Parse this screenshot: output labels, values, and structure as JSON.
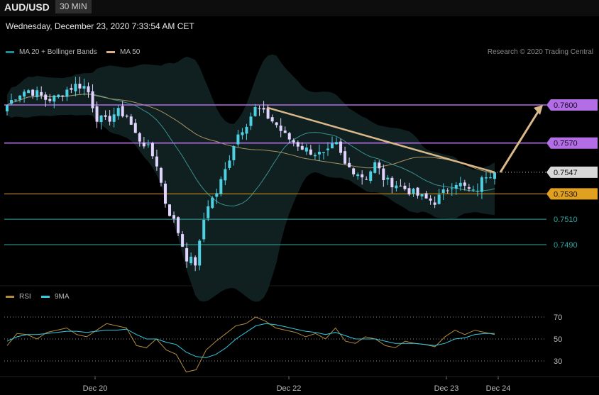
{
  "header": {
    "symbol": "AUD/USD",
    "timeframe": "30 MIN"
  },
  "datetime": "Wednesday, December 23, 2020 7:33:54 AM CET",
  "legend": {
    "ma20_label": "MA 20 + Bollinger Bands",
    "ma50_label": "MA 50",
    "credit": "Research © 2020 Trading Central"
  },
  "rsi_legend": {
    "rsi_label": "RSI",
    "ma9_label": "9MA"
  },
  "colors": {
    "bull": "#4dd0e1",
    "bear": "#e1d4ff",
    "bollinger": "#1e3b3c",
    "ma20": "#3a8f8c",
    "ma50": "#a89060",
    "resistance": "#b36ee6",
    "support_orange": "#e0a020",
    "support_cyan": "#2fa7a0",
    "trendline": "#d9b88a",
    "rsi": "#b08a3e",
    "rsi_ma": "#33c9e0"
  },
  "chart_data": {
    "type": "candlestick",
    "price_ylim": [
      0.7443,
      0.7654
    ],
    "x_labels": [
      "Dec 20",
      "Dec 22",
      "Dec 23",
      "Dec 24"
    ],
    "price_levels": [
      {
        "value": 0.76,
        "label": "0.7600",
        "kind": "resistance"
      },
      {
        "value": 0.757,
        "label": "0.7570",
        "kind": "resistance"
      },
      {
        "value": 0.7547,
        "label": "0.7547",
        "kind": "current"
      },
      {
        "value": 0.753,
        "label": "0.7530",
        "kind": "support"
      },
      {
        "value": 0.751,
        "label": "0.7510",
        "kind": "support_minor"
      },
      {
        "value": 0.749,
        "label": "0.7490",
        "kind": "support_minor"
      }
    ],
    "trendline": {
      "from_price": 0.7598,
      "to_price": 0.7547
    },
    "projection": {
      "from_price": 0.7547,
      "to_price": 0.76
    },
    "candle_path": [
      0.76,
      0.7608,
      0.7612,
      0.7609,
      0.7604,
      0.7606,
      0.7612,
      0.7616,
      0.7614,
      0.759,
      0.7587,
      0.7595,
      0.7592,
      0.7575,
      0.7568,
      0.7555,
      0.752,
      0.7505,
      0.748,
      0.7475,
      0.752,
      0.753,
      0.755,
      0.7575,
      0.7585,
      0.7598,
      0.7592,
      0.7585,
      0.7575,
      0.757,
      0.7565,
      0.7562,
      0.756,
      0.757,
      0.7552,
      0.7548,
      0.7542,
      0.7554,
      0.754,
      0.7538,
      0.7534,
      0.753,
      0.7526,
      0.7524,
      0.7532,
      0.754,
      0.7535,
      0.753,
      0.7545,
      0.7547
    ],
    "rsi": {
      "yticks": [
        70,
        50,
        30
      ],
      "ylim": [
        10,
        75
      ],
      "rsi_values": [
        44,
        55,
        54,
        50,
        56,
        58,
        60,
        54,
        52,
        58,
        64,
        62,
        60,
        44,
        42,
        50,
        40,
        36,
        20,
        22,
        40,
        48,
        55,
        62,
        64,
        70,
        66,
        60,
        58,
        56,
        52,
        55,
        50,
        60,
        48,
        46,
        52,
        50,
        44,
        42,
        48,
        46,
        45,
        43,
        52,
        58,
        54,
        58,
        56,
        54
      ],
      "ma_values": [
        48,
        52,
        54,
        54,
        55,
        56,
        57,
        57,
        56,
        57,
        58,
        58,
        59,
        54,
        50,
        50,
        47,
        45,
        38,
        34,
        33,
        36,
        42,
        50,
        56,
        62,
        64,
        63,
        61,
        59,
        57,
        56,
        54,
        56,
        53,
        50,
        50,
        50,
        48,
        46,
        46,
        46,
        45,
        44,
        46,
        50,
        51,
        54,
        55,
        55
      ]
    }
  }
}
